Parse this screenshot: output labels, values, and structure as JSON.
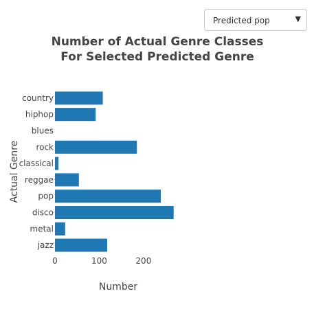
{
  "dropdown": {
    "selected": "Predicted pop",
    "arrow_icon": "▼"
  },
  "chart_data": {
    "type": "bar",
    "orientation": "horizontal",
    "title_lines": [
      "Number of Actual Genre Classes",
      "For Selected Predicted Genre"
    ],
    "xlabel": "Number",
    "ylabel": "Actual Genre",
    "categories": [
      "country",
      "hiphop",
      "blues",
      "rock",
      "classical",
      "reggae",
      "pop",
      "disco",
      "metal",
      "jazz"
    ],
    "values": [
      108,
      92,
      0,
      185,
      8,
      54,
      239,
      268,
      23,
      118
    ],
    "xlim": [
      0,
      270
    ],
    "xticks": [
      0,
      100,
      200
    ],
    "bar_color": "#1f77b4",
    "grid": false
  }
}
